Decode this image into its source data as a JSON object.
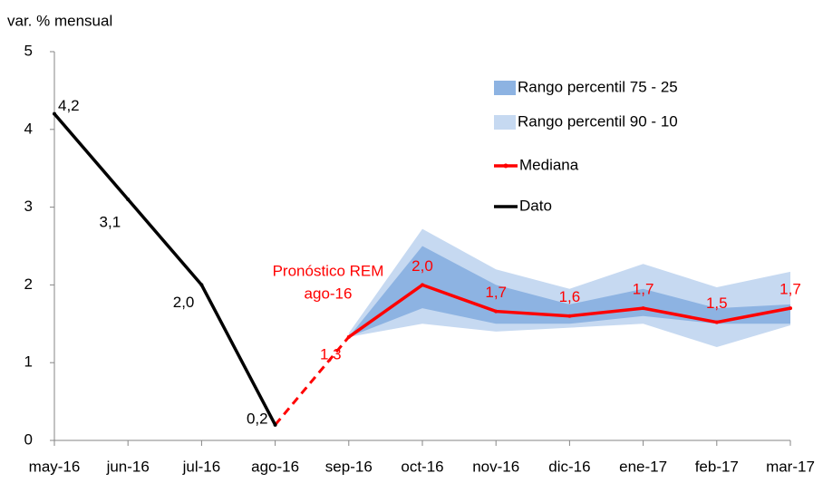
{
  "chart_data": {
    "type": "line",
    "y_label": "var. % mensual",
    "categories": [
      "may-16",
      "jun-16",
      "jul-16",
      "ago-16",
      "sep-16",
      "oct-16",
      "nov-16",
      "dic-16",
      "ene-17",
      "feb-17",
      "mar-17"
    ],
    "ylim": [
      0,
      5
    ],
    "yticks": [
      0,
      1,
      2,
      3,
      4,
      5
    ],
    "bands": [
      {
        "name": "Rango percentil 75 - 25",
        "color": "#8db3e2",
        "low": [
          null,
          null,
          null,
          null,
          1.33,
          1.7,
          1.5,
          1.5,
          1.6,
          1.5,
          1.5
        ],
        "high": [
          null,
          null,
          null,
          null,
          1.33,
          2.5,
          2.0,
          1.75,
          1.95,
          1.7,
          1.75
        ]
      },
      {
        "name": "Rango percentil 90 - 10",
        "color": "#c6d9f1",
        "low": [
          null,
          null,
          null,
          null,
          1.33,
          1.5,
          1.4,
          1.45,
          1.5,
          1.2,
          1.48
        ],
        "high": [
          null,
          null,
          null,
          null,
          1.38,
          2.72,
          2.2,
          1.95,
          2.27,
          1.97,
          2.17
        ]
      }
    ],
    "series": [
      {
        "name": "Mediana",
        "color": "#ff0000",
        "values": [
          null,
          null,
          null,
          null,
          1.33,
          2.0,
          1.66,
          1.6,
          1.7,
          1.52,
          1.7
        ],
        "value_labels": [
          null,
          null,
          null,
          null,
          "1,3",
          "2,0",
          "1,7",
          "1,6",
          "1,7",
          "1,5",
          "1,7"
        ]
      },
      {
        "name": "Dato",
        "color": "#000000",
        "values": [
          4.2,
          3.1,
          2.0,
          0.2,
          null,
          null,
          null,
          null,
          null,
          null,
          null
        ],
        "value_labels": [
          "4,2",
          "3,1",
          "2,0",
          "0,2",
          null,
          null,
          null,
          null,
          null,
          null,
          null
        ]
      }
    ],
    "annotation": [
      "Pronóstico REM",
      "ago-16"
    ]
  }
}
